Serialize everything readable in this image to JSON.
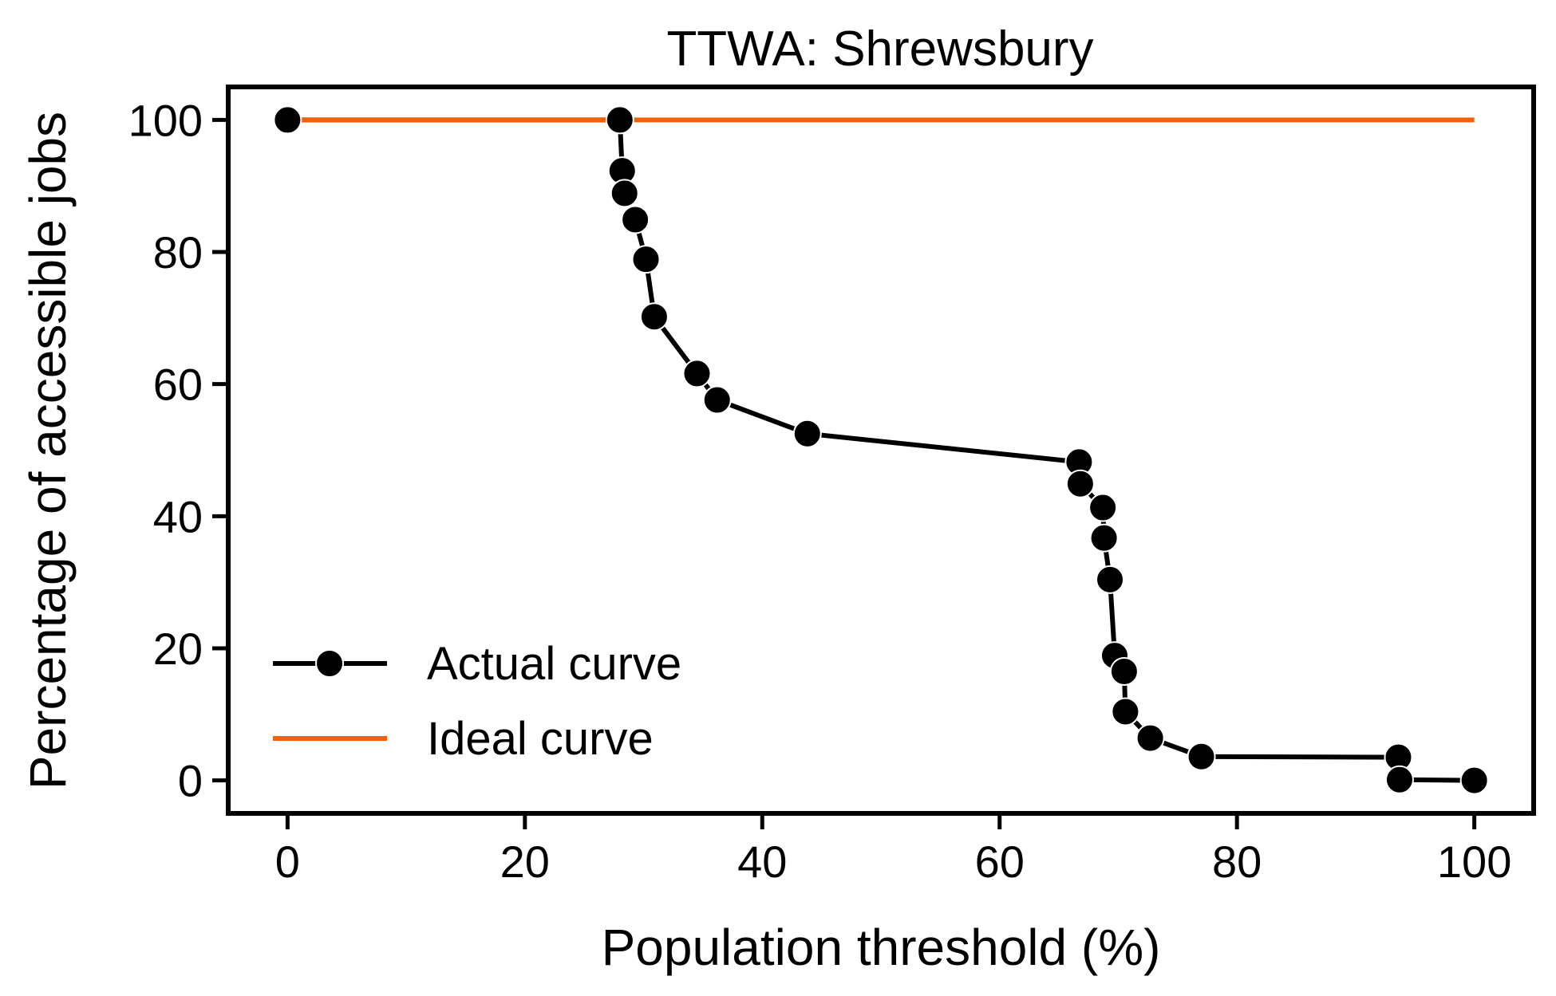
{
  "chart_data": {
    "type": "line",
    "title": "TTWA: Shrewsbury",
    "xlabel": "Population threshold (%)",
    "ylabel": "Percentage of accessible jobs",
    "xlim": [
      -5,
      105
    ],
    "ylim": [
      -5,
      105
    ],
    "xticks": [
      0,
      20,
      40,
      60,
      80,
      100
    ],
    "yticks": [
      0,
      20,
      40,
      60,
      80,
      100
    ],
    "grid": false,
    "legend_position": "lower-left",
    "series": [
      {
        "name": "Actual curve",
        "color": "#000000",
        "marker": "circle",
        "x": [
          0,
          28.0,
          28.2,
          28.4,
          29.3,
          30.2,
          30.9,
          34.5,
          36.2,
          43.8,
          66.7,
          66.8,
          68.7,
          68.8,
          69.3,
          69.7,
          70.5,
          70.6,
          72.7,
          77.0,
          93.6,
          93.7,
          100
        ],
        "y": [
          100,
          100,
          92.3,
          88.9,
          84.9,
          78.9,
          70.2,
          61.6,
          57.6,
          52.5,
          48.2,
          44.9,
          41.3,
          36.7,
          30.4,
          18.9,
          16.5,
          10.4,
          6.4,
          3.6,
          3.5,
          0.1,
          0
        ]
      },
      {
        "name": "Ideal curve",
        "color": "#f4600c",
        "marker": "none",
        "x": [
          0,
          100
        ],
        "y": [
          100,
          100
        ]
      }
    ]
  }
}
